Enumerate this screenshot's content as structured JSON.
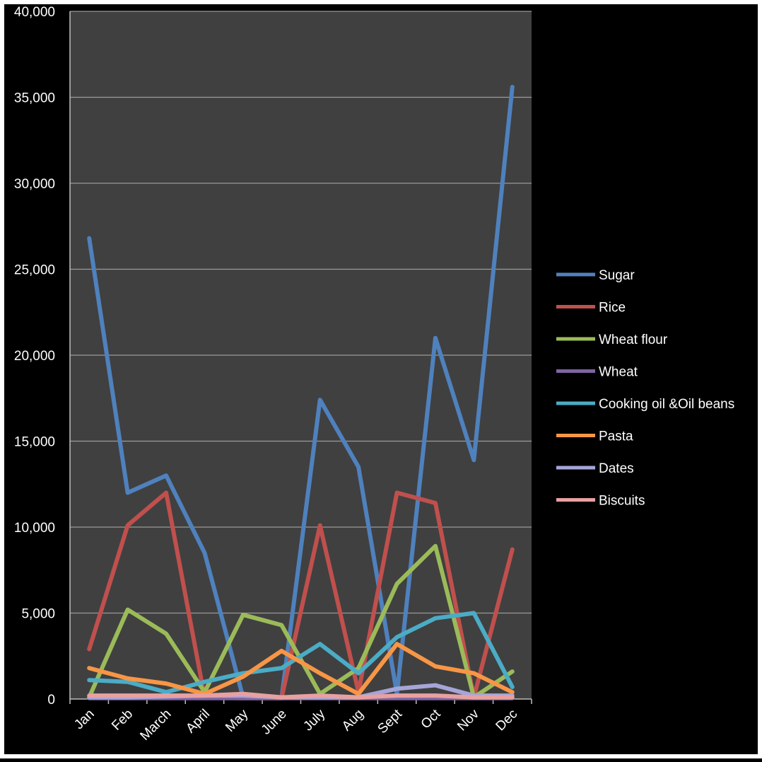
{
  "chart_data": {
    "type": "line",
    "title": "",
    "xlabel": "",
    "ylabel": "",
    "ylim": [
      0,
      40000
    ],
    "yticks": [
      0,
      5000,
      10000,
      15000,
      20000,
      25000,
      30000,
      35000,
      40000
    ],
    "ytick_labels": [
      "0",
      "5,000",
      "10,000",
      "15,000",
      "20,000",
      "25,000",
      "30,000",
      "35,000",
      "40,000"
    ],
    "categories": [
      "Jan",
      "Feb",
      "March",
      "April",
      "May",
      "June",
      "July",
      "Aug",
      "Sept",
      "Oct",
      "Nov",
      "Dec"
    ],
    "grid": true,
    "legend_position": "right",
    "plot_background": "#404040",
    "series": [
      {
        "name": "Sugar",
        "color": "#4F81BD",
        "values": [
          26800,
          12000,
          13000,
          8500,
          100,
          50,
          17400,
          13500,
          300,
          21000,
          13900,
          35600
        ]
      },
      {
        "name": "Rice",
        "color": "#C0504D",
        "values": [
          2900,
          10100,
          12000,
          100,
          50,
          50,
          10100,
          400,
          12000,
          11400,
          100,
          8700
        ]
      },
      {
        "name": "Wheat flour",
        "color": "#9BBB59",
        "values": [
          100,
          5200,
          3800,
          400,
          4900,
          4300,
          300,
          1800,
          6700,
          8900,
          100,
          1600
        ]
      },
      {
        "name": "Wheat",
        "color": "#8064A2",
        "values": [
          50,
          50,
          50,
          50,
          50,
          50,
          50,
          50,
          50,
          50,
          50,
          50
        ]
      },
      {
        "name": "Cooking oil &Oil beans",
        "color": "#4BACC6",
        "values": [
          1100,
          1000,
          400,
          1000,
          1500,
          1800,
          3200,
          1500,
          3600,
          4700,
          5000,
          700
        ]
      },
      {
        "name": "Pasta",
        "color": "#F79646",
        "values": [
          1800,
          1200,
          900,
          300,
          1300,
          2800,
          1500,
          300,
          3200,
          1900,
          1500,
          400
        ]
      },
      {
        "name": "Dates",
        "color": "#A5A5D8",
        "values": [
          100,
          100,
          150,
          200,
          200,
          100,
          100,
          100,
          600,
          800,
          200,
          200
        ]
      },
      {
        "name": "Biscuits",
        "color": "#E8A0A0",
        "values": [
          200,
          200,
          200,
          200,
          300,
          100,
          200,
          100,
          200,
          200,
          100,
          100
        ]
      }
    ]
  }
}
